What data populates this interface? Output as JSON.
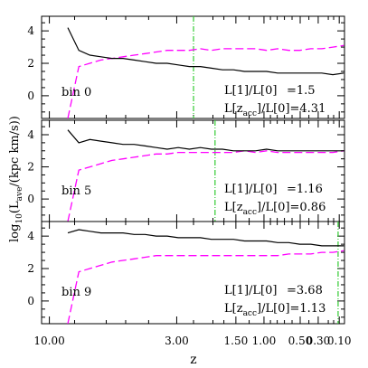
{
  "chart_data": {
    "type": "line",
    "xlabel": "z",
    "ylabel_base": "log",
    "ylabel_sub": "10",
    "ylabel_mid": "(L",
    "ylabel_subsub": "ave",
    "ylabel_tail": "/(kpc km/s))",
    "x_ticks": [
      "10.00",
      "3.00",
      "1.50",
      "1.00",
      "0.50",
      "0.30",
      "0.10"
    ],
    "y_ticks": [
      "0",
      "2",
      "4"
    ],
    "ylim": [
      -1.4,
      4.9
    ],
    "colors": {
      "black": "#000000",
      "magenta": "#ff00ff",
      "green": "#33cc33"
    },
    "panels": [
      {
        "label": "bin 0",
        "ann1_name": "L[1]/L[0]",
        "ann1_value": "=1.5",
        "ann2_prefix": "L[z",
        "ann2_sub": "acc",
        "ann2_suffix": "]/L[0]=4.31",
        "z_acc": 2.5,
        "black_y": [
          4.2,
          2.8,
          2.5,
          2.4,
          2.3,
          2.3,
          2.2,
          2.1,
          2.0,
          2.0,
          1.9,
          1.8,
          1.8,
          1.7,
          1.6,
          1.6,
          1.5,
          1.5,
          1.5,
          1.4,
          1.4,
          1.4,
          1.4,
          1.4,
          1.3,
          1.4
        ],
        "magenta_y": [
          -1.4,
          1.8,
          2.0,
          2.2,
          2.3,
          2.4,
          2.5,
          2.6,
          2.7,
          2.8,
          2.8,
          2.8,
          2.9,
          2.8,
          2.9,
          2.9,
          2.9,
          2.9,
          2.8,
          2.9,
          2.8,
          2.8,
          2.9,
          2.9,
          3.0,
          3.1
        ]
      },
      {
        "label": "bin 5",
        "ann1_name": "L[1]/L[0]",
        "ann1_value": "=1.16",
        "ann2_prefix": "L[z",
        "ann2_sub": "acc",
        "ann2_suffix": "]/L[0]=0.86",
        "z_acc": 1.95,
        "black_y": [
          4.3,
          3.5,
          3.7,
          3.6,
          3.5,
          3.4,
          3.4,
          3.3,
          3.2,
          3.1,
          3.2,
          3.1,
          3.2,
          3.1,
          3.1,
          3.0,
          3.0,
          3.0,
          3.1,
          3.0,
          3.0,
          3.0,
          3.0,
          3.0,
          3.0,
          3.0
        ],
        "magenta_y": [
          -1.4,
          1.8,
          2.0,
          2.2,
          2.4,
          2.5,
          2.6,
          2.7,
          2.8,
          2.8,
          2.9,
          2.9,
          2.9,
          2.9,
          2.9,
          2.9,
          3.0,
          2.9,
          3.0,
          2.9,
          2.9,
          2.9,
          2.9,
          2.9,
          2.9,
          3.0
        ]
      },
      {
        "label": "bin 9",
        "ann1_name": "L[1]/L[0]",
        "ann1_value": "=3.68",
        "ann2_prefix": "L[z",
        "ann2_sub": "acc",
        "ann2_suffix": "]/L[0]=1.13",
        "z_acc": 0.11,
        "black_y": [
          4.2,
          4.4,
          4.3,
          4.2,
          4.2,
          4.2,
          4.1,
          4.1,
          4.0,
          4.0,
          3.9,
          3.9,
          3.9,
          3.8,
          3.8,
          3.8,
          3.7,
          3.7,
          3.7,
          3.6,
          3.6,
          3.5,
          3.5,
          3.4,
          3.4,
          3.4
        ],
        "magenta_y": [
          -1.4,
          1.8,
          2.0,
          2.2,
          2.4,
          2.5,
          2.6,
          2.7,
          2.8,
          2.8,
          2.8,
          2.8,
          2.8,
          2.8,
          2.8,
          2.8,
          2.8,
          2.8,
          2.8,
          2.8,
          2.9,
          2.9,
          2.9,
          3.0,
          3.0,
          3.1
        ]
      }
    ]
  }
}
